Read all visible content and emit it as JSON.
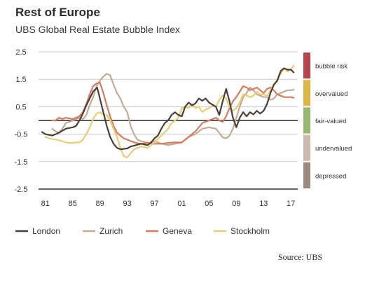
{
  "chart_data": {
    "type": "line",
    "title": "Rest of Europe",
    "subtitle": "UBS Global Real Estate Bubble Index",
    "xlabel": "",
    "ylabel": "",
    "xlim": [
      1980,
      2018
    ],
    "ylim": [
      -2.5,
      2.5
    ],
    "x_tick_labels": [
      "81",
      "85",
      "89",
      "93",
      "97",
      "01",
      "05",
      "09",
      "13",
      "17"
    ],
    "y_tick_labels": [
      "2.5",
      "1.5",
      "0.5",
      "-0.5",
      "-1.5",
      "-2.5"
    ],
    "y_ticks": [
      2.5,
      1.5,
      0.5,
      -0.5,
      -1.5,
      -2.5
    ],
    "grid": true,
    "legend_position": "bottom",
    "zones": [
      {
        "name": "bubble risk",
        "range": [
          1.5,
          2.5
        ],
        "color": "#b5454a"
      },
      {
        "name": "overvalued",
        "range": [
          0.5,
          1.5
        ],
        "color": "#dfb545"
      },
      {
        "name": "fair-valued",
        "range": [
          -0.5,
          0.5
        ],
        "color": "#97b86c"
      },
      {
        "name": "undervalued",
        "range": [
          -1.5,
          -0.5
        ],
        "color": "#c9bbad"
      },
      {
        "name": "depressed",
        "range": [
          -2.5,
          -1.5
        ],
        "color": "#9b8a7e"
      }
    ],
    "series": [
      {
        "name": "London",
        "color": "#4a4039",
        "points": [
          [
            1980.5,
            -0.42
          ],
          [
            1981,
            -0.5
          ],
          [
            1982,
            -0.55
          ],
          [
            1983,
            -0.45
          ],
          [
            1984,
            -0.3
          ],
          [
            1985,
            -0.25
          ],
          [
            1985.5,
            -0.2
          ],
          [
            1986,
            0.0
          ],
          [
            1986.5,
            0.25
          ],
          [
            1987,
            0.55
          ],
          [
            1987.5,
            0.8
          ],
          [
            1988,
            1.05
          ],
          [
            1988.6,
            1.2
          ],
          [
            1989,
            0.8
          ],
          [
            1989.5,
            0.3
          ],
          [
            1990,
            -0.2
          ],
          [
            1990.5,
            -0.6
          ],
          [
            1991,
            -0.85
          ],
          [
            1991.5,
            -1.0
          ],
          [
            1992,
            -1.05
          ],
          [
            1993,
            -1.02
          ],
          [
            1993.5,
            -0.95
          ],
          [
            1994,
            -0.92
          ],
          [
            1995,
            -0.85
          ],
          [
            1996,
            -0.9
          ],
          [
            1996.5,
            -0.8
          ],
          [
            1997,
            -0.65
          ],
          [
            1997.5,
            -0.55
          ],
          [
            1998,
            -0.3
          ],
          [
            1998.5,
            -0.1
          ],
          [
            1999,
            0.0
          ],
          [
            1999.5,
            0.2
          ],
          [
            2000,
            0.3
          ],
          [
            2000.5,
            0.2
          ],
          [
            2001,
            0.15
          ],
          [
            2001.5,
            0.5
          ],
          [
            2002,
            0.65
          ],
          [
            2002.5,
            0.55
          ],
          [
            2003,
            0.62
          ],
          [
            2003.5,
            0.8
          ],
          [
            2004,
            0.72
          ],
          [
            2004.5,
            0.8
          ],
          [
            2005,
            0.65
          ],
          [
            2006,
            0.5
          ],
          [
            2006.5,
            0.2
          ],
          [
            2007,
            0.7
          ],
          [
            2007.5,
            1.15
          ],
          [
            2008,
            0.7
          ],
          [
            2008.5,
            0.1
          ],
          [
            2009,
            -0.25
          ],
          [
            2009.5,
            0.1
          ],
          [
            2010,
            0.3
          ],
          [
            2010.5,
            0.15
          ],
          [
            2011,
            0.3
          ],
          [
            2011.5,
            0.22
          ],
          [
            2012,
            0.35
          ],
          [
            2012.5,
            0.25
          ],
          [
            2013,
            0.35
          ],
          [
            2013.5,
            0.6
          ],
          [
            2014,
            1.0
          ],
          [
            2014.5,
            1.3
          ],
          [
            2015,
            1.45
          ],
          [
            2015.5,
            1.8
          ],
          [
            2016,
            1.9
          ],
          [
            2016.5,
            1.85
          ],
          [
            2017,
            1.85
          ],
          [
            2017.4,
            1.75
          ]
        ]
      },
      {
        "name": "Zurich",
        "color": "#c4ab94",
        "points": [
          [
            1982,
            -0.3
          ],
          [
            1982.5,
            -0.4
          ],
          [
            1983,
            -0.45
          ],
          [
            1983.5,
            -0.3
          ],
          [
            1984,
            -0.1
          ],
          [
            1985,
            0.0
          ],
          [
            1986,
            0.1
          ],
          [
            1986.5,
            0.05
          ],
          [
            1987,
            0.2
          ],
          [
            1987.5,
            0.55
          ],
          [
            1988,
            0.85
          ],
          [
            1988.5,
            1.25
          ],
          [
            1989,
            1.45
          ],
          [
            1989.5,
            1.6
          ],
          [
            1990,
            1.7
          ],
          [
            1990.5,
            1.65
          ],
          [
            1991,
            1.3
          ],
          [
            1991.5,
            1.0
          ],
          [
            1992,
            0.8
          ],
          [
            1992.5,
            0.5
          ],
          [
            1993,
            0.3
          ],
          [
            1993.5,
            -0.2
          ],
          [
            1994,
            -0.5
          ],
          [
            1994.5,
            -0.7
          ],
          [
            1995,
            -0.75
          ],
          [
            1996,
            -0.82
          ],
          [
            1996.5,
            -0.8
          ],
          [
            1997,
            -0.75
          ],
          [
            1998,
            -0.85
          ],
          [
            1999,
            -0.9
          ],
          [
            2000,
            -0.85
          ],
          [
            2001,
            -0.8
          ],
          [
            2002,
            -0.6
          ],
          [
            2003,
            -0.5
          ],
          [
            2004,
            -0.3
          ],
          [
            2005,
            -0.25
          ],
          [
            2006,
            -0.3
          ],
          [
            2006.5,
            -0.45
          ],
          [
            2007,
            -0.62
          ],
          [
            2007.5,
            -0.65
          ],
          [
            2008,
            -0.55
          ],
          [
            2008.5,
            -0.3
          ],
          [
            2009,
            0.1
          ],
          [
            2009.5,
            0.5
          ],
          [
            2010,
            0.85
          ],
          [
            2010.5,
            1.0
          ],
          [
            2011,
            1.2
          ],
          [
            2011.5,
            1.1
          ],
          [
            2012,
            0.95
          ],
          [
            2012.5,
            0.9
          ],
          [
            2013,
            0.85
          ],
          [
            2013.5,
            0.85
          ],
          [
            2014,
            0.75
          ],
          [
            2014.5,
            0.8
          ],
          [
            2015,
            0.95
          ],
          [
            2015.5,
            1.0
          ],
          [
            2016,
            1.05
          ],
          [
            2016.5,
            1.1
          ],
          [
            2017,
            1.1
          ],
          [
            2017.4,
            1.12
          ]
        ]
      },
      {
        "name": "Geneva",
        "color": "#d67a60",
        "points": [
          [
            1982,
            0.0
          ],
          [
            1982.5,
            0.0
          ],
          [
            1983,
            0.1
          ],
          [
            1983.5,
            0.05
          ],
          [
            1984,
            0.1
          ],
          [
            1985,
            0.05
          ],
          [
            1986,
            0.15
          ],
          [
            1986.5,
            0.3
          ],
          [
            1987,
            0.6
          ],
          [
            1987.5,
            0.95
          ],
          [
            1988,
            1.25
          ],
          [
            1988.5,
            1.35
          ],
          [
            1989,
            1.38
          ],
          [
            1989.5,
            1.0
          ],
          [
            1990,
            0.55
          ],
          [
            1990.5,
            0.15
          ],
          [
            1991,
            -0.2
          ],
          [
            1991.5,
            -0.45
          ],
          [
            1992,
            -0.55
          ],
          [
            1992.5,
            -0.65
          ],
          [
            1993,
            -0.7
          ],
          [
            1993.5,
            -0.75
          ],
          [
            1994,
            -0.8
          ],
          [
            1995,
            -0.85
          ],
          [
            1996,
            -0.82
          ],
          [
            1997,
            -0.85
          ],
          [
            1998,
            -0.85
          ],
          [
            1999,
            -0.82
          ],
          [
            2000,
            -0.8
          ],
          [
            2001,
            -0.8
          ],
          [
            2002,
            -0.6
          ],
          [
            2003,
            -0.4
          ],
          [
            2004,
            -0.1
          ],
          [
            2005,
            0.0
          ],
          [
            2006,
            0.1
          ],
          [
            2006.5,
            0.0
          ],
          [
            2007,
            -0.05
          ],
          [
            2007.5,
            0.15
          ],
          [
            2008,
            0.45
          ],
          [
            2008.5,
            0.7
          ],
          [
            2009,
            0.85
          ],
          [
            2009.5,
            1.05
          ],
          [
            2010,
            1.25
          ],
          [
            2010.5,
            1.2
          ],
          [
            2011,
            1.1
          ],
          [
            2012,
            1.2
          ],
          [
            2012.5,
            1.1
          ],
          [
            2013,
            1.0
          ],
          [
            2013.5,
            1.15
          ],
          [
            2014,
            1.2
          ],
          [
            2014.5,
            1.1
          ],
          [
            2015,
            0.95
          ],
          [
            2015.5,
            0.9
          ],
          [
            2016,
            0.85
          ],
          [
            2016.5,
            0.85
          ],
          [
            2017,
            0.85
          ],
          [
            2017.4,
            0.83
          ]
        ]
      },
      {
        "name": "Stockholm",
        "color": "#e8cd73",
        "points": [
          [
            1981,
            -0.6
          ],
          [
            1982,
            -0.68
          ],
          [
            1983,
            -0.72
          ],
          [
            1984,
            -0.8
          ],
          [
            1984.5,
            -0.82
          ],
          [
            1985,
            -0.82
          ],
          [
            1985.5,
            -0.8
          ],
          [
            1986,
            -0.8
          ],
          [
            1986.5,
            -0.7
          ],
          [
            1987,
            -0.5
          ],
          [
            1987.5,
            -0.25
          ],
          [
            1988,
            0.05
          ],
          [
            1988.5,
            0.25
          ],
          [
            1989,
            0.3
          ],
          [
            1989.5,
            0.2
          ],
          [
            1990,
            0.2
          ],
          [
            1990.5,
            0.0
          ],
          [
            1991,
            -0.3
          ],
          [
            1991.5,
            -0.6
          ],
          [
            1992,
            -1.0
          ],
          [
            1992.5,
            -1.3
          ],
          [
            1993,
            -1.35
          ],
          [
            1993.5,
            -1.2
          ],
          [
            1994,
            -1.05
          ],
          [
            1995,
            -0.95
          ],
          [
            1996,
            -1.0
          ],
          [
            1996.5,
            -0.9
          ],
          [
            1997,
            -0.8
          ],
          [
            1998,
            -0.55
          ],
          [
            1999,
            -0.3
          ],
          [
            1999.5,
            -0.1
          ],
          [
            2000,
            0.0
          ],
          [
            2000.5,
            0.1
          ],
          [
            2001,
            0.45
          ],
          [
            2001.5,
            0.5
          ],
          [
            2002,
            0.45
          ],
          [
            2002.5,
            0.6
          ],
          [
            2003,
            0.45
          ],
          [
            2003.5,
            0.5
          ],
          [
            2004,
            0.3
          ],
          [
            2004.5,
            0.4
          ],
          [
            2005,
            0.45
          ],
          [
            2005.5,
            0.55
          ],
          [
            2006,
            0.5
          ],
          [
            2006.5,
            0.75
          ],
          [
            2007,
            0.9
          ],
          [
            2007.5,
            0.8
          ],
          [
            2008,
            0.5
          ],
          [
            2008.5,
            0.35
          ],
          [
            2009,
            0.45
          ],
          [
            2009.5,
            0.65
          ],
          [
            2010,
            0.95
          ],
          [
            2010.5,
            0.9
          ],
          [
            2011,
            0.85
          ],
          [
            2011.5,
            0.9
          ],
          [
            2012,
            1.05
          ],
          [
            2012.5,
            0.95
          ],
          [
            2013,
            0.95
          ],
          [
            2013.5,
            0.9
          ],
          [
            2014,
            1.1
          ],
          [
            2014.5,
            1.3
          ],
          [
            2015,
            1.5
          ],
          [
            2015.5,
            1.7
          ],
          [
            2016,
            1.9
          ],
          [
            2016.5,
            1.78
          ],
          [
            2017,
            1.85
          ],
          [
            2017.4,
            2.0
          ]
        ]
      }
    ]
  },
  "source": "Source: UBS"
}
